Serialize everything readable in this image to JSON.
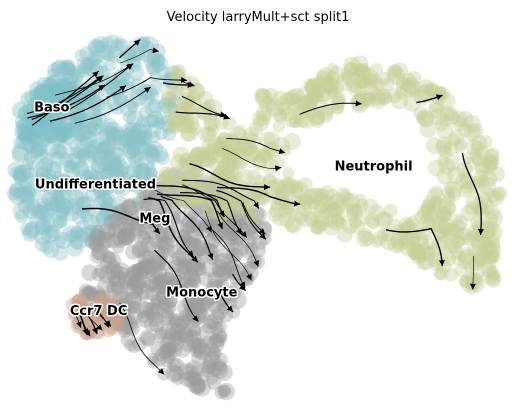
{
  "chart_data": {
    "type": "scatter",
    "title": "Velocity larryMult+sct split1",
    "xlabel": "",
    "ylabel": "",
    "grid": false,
    "legend": "on data",
    "colors": {
      "Undifferentiated": "#8cc3cb",
      "Baso": "#7fbfc8",
      "Neutrophil": "#c8cc96",
      "Monocyte": "#9a9a9a",
      "Ccr7 DC": "#c7a48d",
      "Meg": "#b8b8b8",
      "stream": "#000000"
    },
    "clusters": [
      {
        "name": "Baso",
        "label": "Baso",
        "center": [
          -6.6,
          3.4
        ]
      },
      {
        "name": "Undifferentiated",
        "label": "Undifferentiated",
        "center": [
          -5.2,
          0.9
        ]
      },
      {
        "name": "Meg",
        "label": "Meg",
        "center": [
          -3.3,
          -0.2
        ]
      },
      {
        "name": "Monocyte",
        "label": "Monocyte",
        "center": [
          -1.8,
          -2.6
        ]
      },
      {
        "name": "Ccr7 DC",
        "label": "Ccr7 DC",
        "center": [
          -5.1,
          -3.2
        ]
      },
      {
        "name": "Neutrophil",
        "label": "Neutrophil",
        "center": [
          3.7,
          1.5
        ]
      }
    ]
  }
}
